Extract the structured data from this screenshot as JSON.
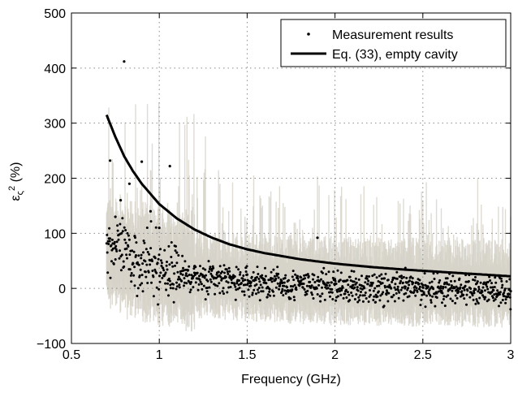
{
  "chart_data": {
    "type": "scatter",
    "title": "",
    "xlabel": "Frequency (GHz)",
    "ylabel": "ε_ς² (%)",
    "ylabel_parts": {
      "base": "ε",
      "sub": "ς",
      "sup": "2",
      "unit": "(%)"
    },
    "xlim": [
      0.5,
      3
    ],
    "ylim": [
      -100,
      500
    ],
    "xticks": [
      0.5,
      1,
      1.5,
      2,
      2.5,
      3
    ],
    "xtick_labels": [
      "0.5",
      "1",
      "1.5",
      "2",
      "2.5",
      "3"
    ],
    "yticks": [
      -100,
      0,
      100,
      200,
      300,
      400,
      500
    ],
    "ytick_labels": [
      "−100",
      "0",
      "100",
      "200",
      "300",
      "400",
      "500"
    ],
    "grid": true,
    "legend_position": "top-right",
    "colors": {
      "band": "#d6d2c8",
      "markers": "#000000",
      "curve": "#000000"
    },
    "series": [
      {
        "name": "Measurement results",
        "kind": "scatter",
        "x": [
          0.72,
          0.75,
          0.78,
          0.8,
          0.83,
          0.86,
          0.9,
          0.95,
          1.0,
          1.06,
          1.1,
          1.2,
          1.3,
          1.4,
          1.5,
          1.6,
          1.7,
          1.8,
          1.9,
          2.0,
          2.1,
          2.2,
          2.3,
          2.4,
          2.5,
          2.6,
          2.7,
          2.8,
          2.9,
          3.0
        ],
        "y": [
          232,
          130,
          160,
          412,
          190,
          95,
          230,
          140,
          110,
          222,
          65,
          40,
          35,
          20,
          25,
          15,
          10,
          10,
          92,
          8,
          5,
          5,
          3,
          3,
          2,
          0,
          0,
          -2,
          -3,
          -5
        ]
      },
      {
        "name": "Eq. (33), empty cavity",
        "kind": "line",
        "x": [
          0.7,
          0.75,
          0.8,
          0.85,
          0.9,
          1.0,
          1.1,
          1.2,
          1.3,
          1.4,
          1.5,
          1.6,
          1.8,
          2.0,
          2.2,
          2.4,
          2.6,
          2.8,
          3.0
        ],
        "y": [
          315,
          275,
          240,
          213,
          190,
          153,
          127,
          107,
          92,
          80,
          71,
          64,
          53,
          45,
          39,
          34,
          30,
          26,
          22
        ]
      }
    ],
    "band_shading": {
      "x_start": 0.7,
      "x_end": 3.0,
      "approx_halfwidth": 60
    }
  }
}
